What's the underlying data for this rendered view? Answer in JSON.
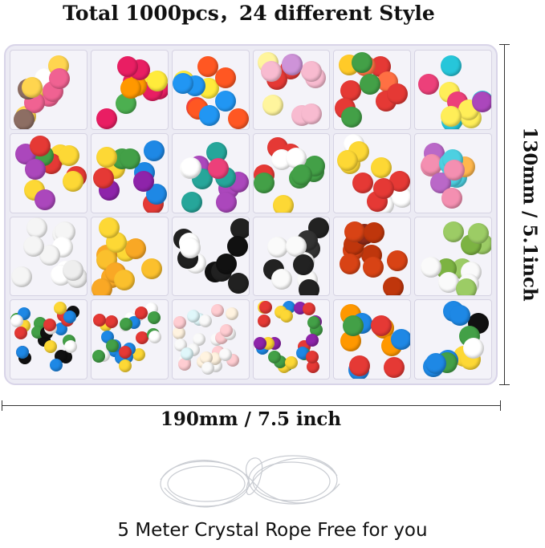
{
  "title": "Total 1000pcs，24 different Style",
  "height_dimension": "130mm / 5.1inch",
  "width_dimension": "190mm / 7.5 inch",
  "caption": "5 Meter Crystal Rope Free for you",
  "box": {
    "columns": 6,
    "rows": 4,
    "compartments": 24
  }
}
